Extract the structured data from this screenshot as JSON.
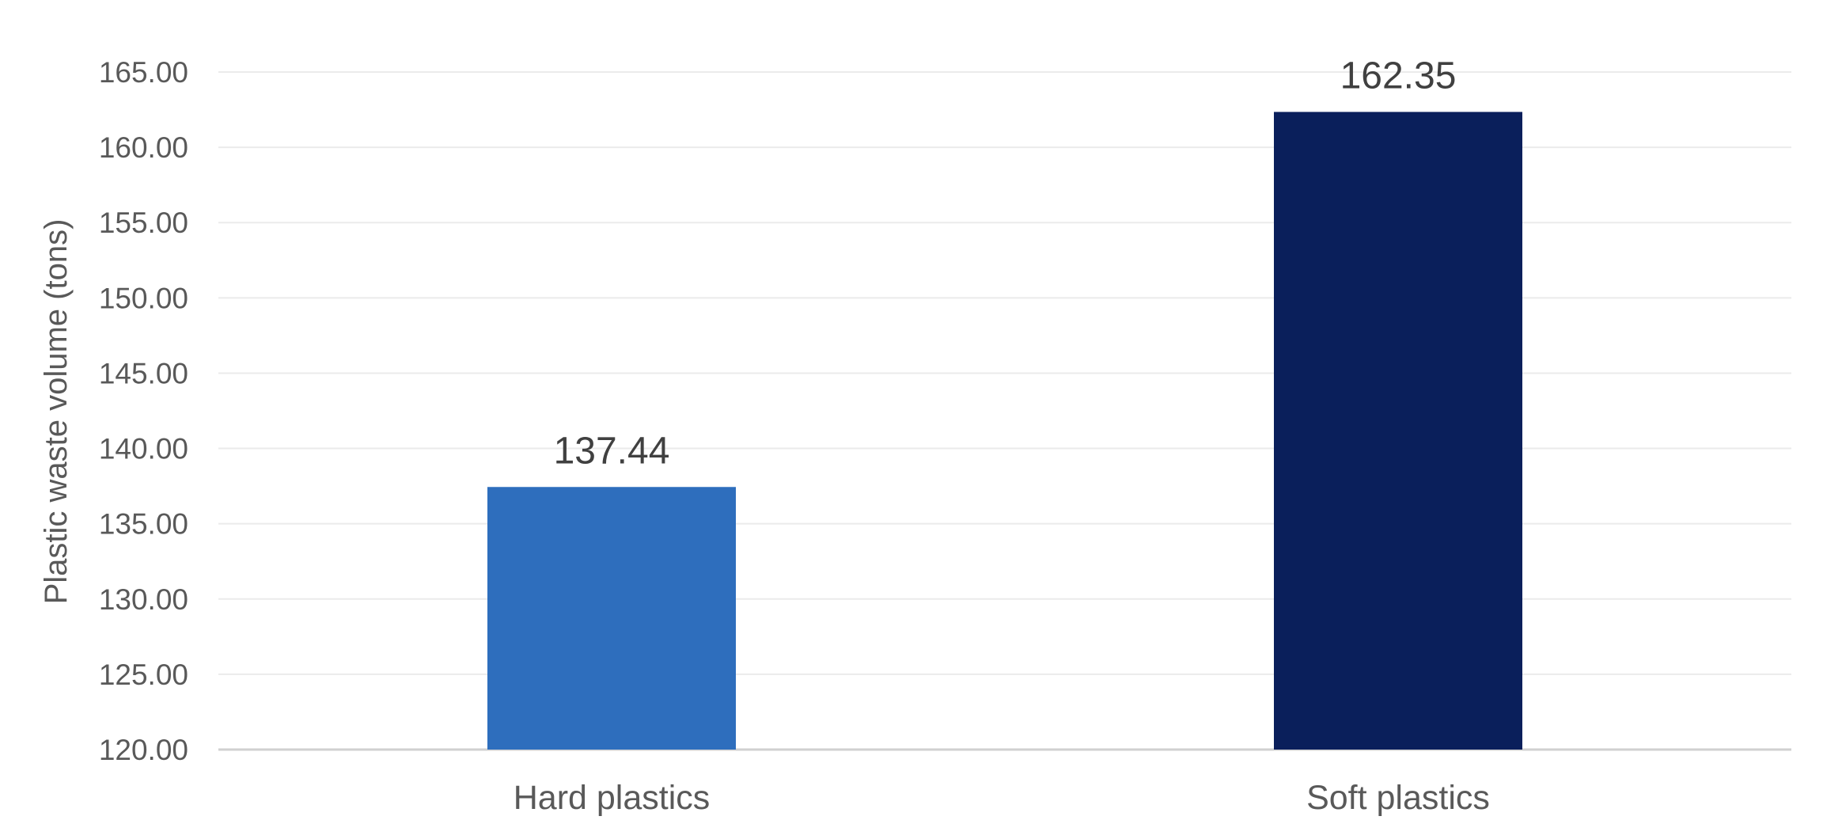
{
  "chart_data": {
    "type": "bar",
    "title": "",
    "xlabel": "",
    "ylabel": "Plastic waste volume (tons)",
    "categories": [
      "Hard plastics",
      "Soft plastics"
    ],
    "values": [
      137.44,
      162.35
    ],
    "data_labels": [
      "137.44",
      "162.35"
    ],
    "bar_colors": [
      "#2E6EBD",
      "#0A1F5B"
    ],
    "ylim": [
      120,
      165
    ],
    "ytick_step": 5,
    "ytick_labels": [
      "120.00",
      "125.00",
      "130.00",
      "135.00",
      "140.00",
      "145.00",
      "150.00",
      "155.00",
      "160.00",
      "165.00"
    ],
    "grid": true,
    "legend": "none",
    "gridline_color": "#EBEBEB",
    "baseline_color": "#D0D0D0"
  }
}
